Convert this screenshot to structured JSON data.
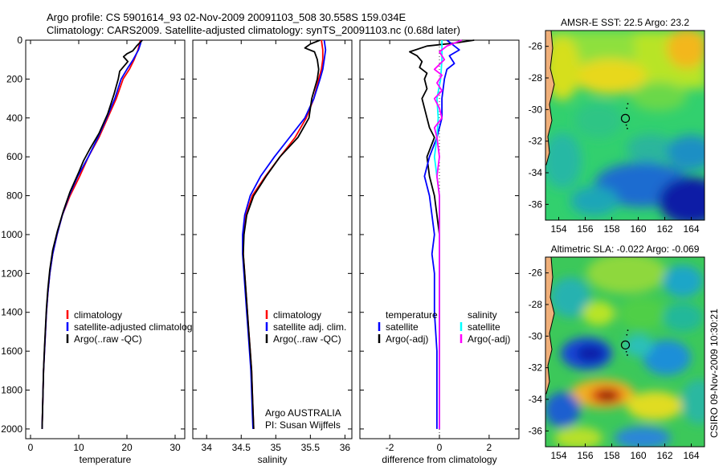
{
  "header": {
    "line1": "Argo profile: CS 5901614_93 02-Nov-2009 20091103_508 30.558S 159.034E",
    "line2": "Climatology: CARS2009. Satellite-adjusted climatology: synTS_20091103.nc (0.68d later)"
  },
  "side_label": "CSIRO 09-Nov-2009 10:30:21",
  "chart_data": [
    {
      "id": "temperature",
      "type": "line",
      "xlabel": "temperature",
      "xlim": [
        -1,
        32
      ],
      "xticks": [
        0,
        10,
        20,
        30
      ],
      "ylim": [
        2050,
        0
      ],
      "yticks": [
        0,
        200,
        400,
        600,
        800,
        1000,
        1200,
        1400,
        1600,
        1800,
        2000
      ],
      "legend": [
        {
          "label": "climatology",
          "color": "#ff0000"
        },
        {
          "label": "satellite-adjusted climatology",
          "color": "#0000ff"
        },
        {
          "label": "Argo(..raw -QC)",
          "color": "#000000"
        }
      ],
      "series": [
        {
          "color": "#ff0000",
          "points": [
            [
              22.8,
              0
            ],
            [
              22.6,
              20
            ],
            [
              22.3,
              50
            ],
            [
              21.5,
              100
            ],
            [
              20.5,
              150
            ],
            [
              19.2,
              200
            ],
            [
              17.8,
              300
            ],
            [
              16.0,
              400
            ],
            [
              14.2,
              500
            ],
            [
              12.0,
              600
            ],
            [
              10.2,
              700
            ],
            [
              8.2,
              800
            ],
            [
              6.6,
              900
            ],
            [
              5.5,
              1000
            ],
            [
              4.6,
              1100
            ],
            [
              4.0,
              1200
            ],
            [
              3.6,
              1300
            ],
            [
              3.3,
              1400
            ],
            [
              3.1,
              1500
            ],
            [
              2.9,
              1600
            ],
            [
              2.7,
              1700
            ],
            [
              2.6,
              1800
            ],
            [
              2.5,
              1900
            ],
            [
              2.4,
              2000
            ]
          ]
        },
        {
          "color": "#0000ff",
          "points": [
            [
              23.0,
              0
            ],
            [
              22.8,
              20
            ],
            [
              22.4,
              50
            ],
            [
              21.3,
              100
            ],
            [
              20.0,
              150
            ],
            [
              18.8,
              200
            ],
            [
              17.5,
              300
            ],
            [
              15.8,
              400
            ],
            [
              14.0,
              500
            ],
            [
              12.0,
              600
            ],
            [
              9.8,
              700
            ],
            [
              8.0,
              800
            ],
            [
              6.6,
              900
            ],
            [
              5.5,
              1000
            ],
            [
              4.6,
              1100
            ],
            [
              4.0,
              1200
            ],
            [
              3.6,
              1300
            ],
            [
              3.3,
              1400
            ],
            [
              3.1,
              1500
            ],
            [
              2.9,
              1600
            ],
            [
              2.7,
              1700
            ],
            [
              2.6,
              1800
            ],
            [
              2.5,
              1900
            ],
            [
              2.4,
              2000
            ]
          ]
        },
        {
          "color": "#000000",
          "points": [
            [
              23.2,
              0
            ],
            [
              22.6,
              15
            ],
            [
              22.0,
              30
            ],
            [
              21.2,
              55
            ],
            [
              20.0,
              70
            ],
            [
              19.3,
              85
            ],
            [
              20.2,
              110
            ],
            [
              18.5,
              160
            ],
            [
              18.2,
              200
            ],
            [
              17.3,
              280
            ],
            [
              16.0,
              380
            ],
            [
              14.2,
              480
            ],
            [
              12.3,
              560
            ],
            [
              11.0,
              620
            ],
            [
              10.0,
              680
            ],
            [
              8.2,
              780
            ],
            [
              6.8,
              880
            ],
            [
              5.6,
              980
            ],
            [
              4.6,
              1080
            ],
            [
              4.0,
              1180
            ],
            [
              3.6,
              1280
            ],
            [
              3.3,
              1380
            ],
            [
              3.1,
              1480
            ],
            [
              2.9,
              1580
            ],
            [
              2.7,
              1700
            ],
            [
              2.6,
              1800
            ],
            [
              2.5,
              1900
            ],
            [
              2.4,
              2000
            ]
          ]
        }
      ]
    },
    {
      "id": "salinity",
      "type": "line",
      "xlabel": "salinity",
      "xlim": [
        33.8,
        36.1
      ],
      "xticks": [
        34,
        34.5,
        35,
        35.5,
        36
      ],
      "ylim": [
        2050,
        0
      ],
      "legend": [
        {
          "label": "climatology",
          "color": "#ff0000"
        },
        {
          "label": "satellite adj. clim.",
          "color": "#0000ff"
        },
        {
          "label": "Argo(..raw -QC)",
          "color": "#000000"
        }
      ],
      "annotation": [
        "Argo AUSTRALIA",
        "PI: Susan Wijffels"
      ],
      "series": [
        {
          "color": "#ff0000",
          "points": [
            [
              35.66,
              0
            ],
            [
              35.68,
              50
            ],
            [
              35.68,
              100
            ],
            [
              35.66,
              150
            ],
            [
              35.62,
              200
            ],
            [
              35.55,
              300
            ],
            [
              35.44,
              400
            ],
            [
              35.28,
              500
            ],
            [
              35.06,
              600
            ],
            [
              34.85,
              700
            ],
            [
              34.66,
              800
            ],
            [
              34.57,
              900
            ],
            [
              34.53,
              1000
            ],
            [
              34.53,
              1100
            ],
            [
              34.55,
              1200
            ],
            [
              34.57,
              1300
            ],
            [
              34.59,
              1400
            ],
            [
              34.61,
              1500
            ],
            [
              34.63,
              1600
            ],
            [
              34.65,
              1700
            ],
            [
              34.66,
              1800
            ],
            [
              34.67,
              1900
            ],
            [
              34.68,
              2000
            ]
          ]
        },
        {
          "color": "#0000ff",
          "points": [
            [
              35.7,
              0
            ],
            [
              35.72,
              50
            ],
            [
              35.7,
              100
            ],
            [
              35.68,
              150
            ],
            [
              35.64,
              200
            ],
            [
              35.55,
              300
            ],
            [
              35.42,
              400
            ],
            [
              35.2,
              500
            ],
            [
              34.98,
              600
            ],
            [
              34.78,
              700
            ],
            [
              34.63,
              800
            ],
            [
              34.55,
              900
            ],
            [
              34.52,
              1000
            ],
            [
              34.52,
              1100
            ],
            [
              34.54,
              1200
            ],
            [
              34.56,
              1300
            ],
            [
              34.58,
              1400
            ],
            [
              34.6,
              1500
            ],
            [
              34.62,
              1600
            ],
            [
              34.64,
              1700
            ],
            [
              34.65,
              1800
            ],
            [
              34.66,
              1900
            ],
            [
              34.67,
              2000
            ]
          ]
        },
        {
          "color": "#000000",
          "points": [
            [
              35.64,
              0
            ],
            [
              35.5,
              20
            ],
            [
              35.42,
              40
            ],
            [
              35.56,
              60
            ],
            [
              35.6,
              100
            ],
            [
              35.62,
              150
            ],
            [
              35.6,
              200
            ],
            [
              35.52,
              300
            ],
            [
              35.48,
              400
            ],
            [
              35.32,
              500
            ],
            [
              35.06,
              600
            ],
            [
              34.86,
              700
            ],
            [
              34.68,
              800
            ],
            [
              34.58,
              900
            ],
            [
              34.54,
              1000
            ],
            [
              34.53,
              1100
            ],
            [
              34.55,
              1200
            ],
            [
              34.57,
              1300
            ],
            [
              34.59,
              1400
            ],
            [
              34.61,
              1500
            ],
            [
              34.63,
              1600
            ],
            [
              34.65,
              1700
            ],
            [
              34.66,
              1800
            ],
            [
              34.67,
              1900
            ],
            [
              34.68,
              2000
            ]
          ]
        }
      ]
    },
    {
      "id": "difference",
      "type": "line",
      "xlabel": "difference from climatology",
      "xlim": [
        -3.2,
        3.2
      ],
      "xticks": [
        -2,
        0,
        2
      ],
      "ylim": [
        2050,
        0
      ],
      "legend_left": [
        {
          "label": "temperature",
          "color": null
        },
        {
          "label": "satellite",
          "color": "#0000ff"
        },
        {
          "label": "Argo(-adj)",
          "color": "#000000"
        }
      ],
      "legend_right": [
        {
          "label": "salinity",
          "color": null
        },
        {
          "label": "satellite",
          "color": "#00ffff"
        },
        {
          "label": "Argo(-adj)",
          "color": "#ff00ff"
        }
      ],
      "series": [
        {
          "color": "#000000",
          "points": [
            [
              1.4,
              0
            ],
            [
              0.6,
              15
            ],
            [
              -0.5,
              30
            ],
            [
              -1.2,
              60
            ],
            [
              -0.9,
              80
            ],
            [
              -0.7,
              110
            ],
            [
              -0.8,
              140
            ],
            [
              -0.5,
              170
            ],
            [
              -0.6,
              200
            ],
            [
              -0.5,
              250
            ],
            [
              -0.7,
              300
            ],
            [
              -0.6,
              350
            ],
            [
              -0.5,
              400
            ],
            [
              -0.4,
              450
            ],
            [
              -0.2,
              500
            ],
            [
              -0.5,
              600
            ],
            [
              -0.4,
              700
            ],
            [
              -0.2,
              800
            ],
            [
              -0.1,
              900
            ],
            [
              0.0,
              1000
            ],
            [
              0.0,
              1200
            ],
            [
              0.0,
              1400
            ],
            [
              0.0,
              1600
            ],
            [
              0.0,
              1800
            ],
            [
              0.0,
              2000
            ]
          ]
        },
        {
          "color": "#0000ff",
          "points": [
            [
              0.3,
              0
            ],
            [
              0.5,
              20
            ],
            [
              0.8,
              50
            ],
            [
              0.4,
              80
            ],
            [
              0.6,
              120
            ],
            [
              0.3,
              150
            ],
            [
              0.2,
              200
            ],
            [
              0.1,
              300
            ],
            [
              0.1,
              400
            ],
            [
              -0.1,
              500
            ],
            [
              -0.4,
              600
            ],
            [
              -0.6,
              700
            ],
            [
              -0.4,
              800
            ],
            [
              -0.3,
              900
            ],
            [
              -0.2,
              1000
            ],
            [
              -0.3,
              1100
            ],
            [
              -0.2,
              1200
            ],
            [
              -0.2,
              1400
            ],
            [
              -0.1,
              1600
            ],
            [
              -0.1,
              1800
            ],
            [
              -0.1,
              2000
            ]
          ]
        },
        {
          "color": "#00ffff",
          "points": [
            [
              0.1,
              0
            ],
            [
              0.1,
              100
            ],
            [
              0.05,
              200
            ],
            [
              -0.1,
              300
            ],
            [
              -0.05,
              400
            ],
            [
              -0.1,
              500
            ],
            [
              -0.2,
              600
            ],
            [
              -0.1,
              700
            ],
            [
              0.0,
              800
            ],
            [
              0.0,
              1000
            ],
            [
              0.0,
              1200
            ],
            [
              0.0,
              1400
            ],
            [
              0.0,
              1600
            ],
            [
              0.0,
              1800
            ],
            [
              0.0,
              2000
            ]
          ]
        },
        {
          "color": "#ff00ff",
          "points": [
            [
              0.9,
              0
            ],
            [
              0.3,
              30
            ],
            [
              0.0,
              60
            ],
            [
              0.2,
              100
            ],
            [
              -0.2,
              150
            ],
            [
              0.1,
              180
            ],
            [
              -0.1,
              220
            ],
            [
              0.1,
              260
            ],
            [
              -0.2,
              300
            ],
            [
              0.0,
              350
            ],
            [
              0.1,
              400
            ],
            [
              -0.2,
              450
            ],
            [
              -0.1,
              500
            ],
            [
              0.0,
              600
            ],
            [
              -0.1,
              700
            ],
            [
              0.0,
              800
            ],
            [
              0.0,
              1000
            ],
            [
              0.0,
              1200
            ],
            [
              0.0,
              1400
            ],
            [
              0.0,
              1600
            ],
            [
              0.0,
              1800
            ],
            [
              0.0,
              2000
            ]
          ]
        }
      ]
    }
  ],
  "maps": [
    {
      "id": "sst",
      "title": "AMSR-E SST: 22.5 Argo: 23.2",
      "xlim": [
        153,
        165
      ],
      "ylim": [
        -37,
        -25
      ],
      "xticks": [
        154,
        156,
        158,
        160,
        162,
        164
      ],
      "yticks": [
        -26,
        -28,
        -30,
        -32,
        -34,
        -36
      ],
      "float": [
        159.03,
        -30.56
      ]
    },
    {
      "id": "sla",
      "title": "Altimetric SLA: -0.022 Argo: -0.069",
      "xlim": [
        153,
        165
      ],
      "ylim": [
        -37,
        -25
      ],
      "xticks": [
        154,
        156,
        158,
        160,
        162,
        164
      ],
      "yticks": [
        -26,
        -28,
        -30,
        -32,
        -34,
        -36
      ],
      "float": [
        159.03,
        -30.56
      ]
    }
  ]
}
